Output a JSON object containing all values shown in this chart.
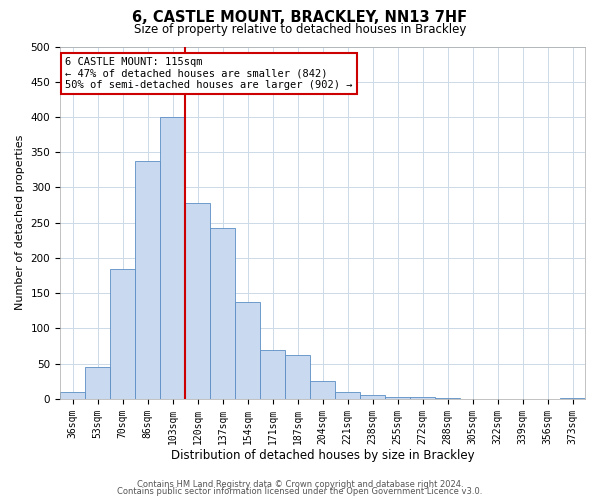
{
  "title": "6, CASTLE MOUNT, BRACKLEY, NN13 7HF",
  "subtitle": "Size of property relative to detached houses in Brackley",
  "xlabel": "Distribution of detached houses by size in Brackley",
  "ylabel": "Number of detached properties",
  "bar_labels": [
    "36sqm",
    "53sqm",
    "70sqm",
    "86sqm",
    "103sqm",
    "120sqm",
    "137sqm",
    "154sqm",
    "171sqm",
    "187sqm",
    "204sqm",
    "221sqm",
    "238sqm",
    "255sqm",
    "272sqm",
    "288sqm",
    "305sqm",
    "322sqm",
    "339sqm",
    "356sqm",
    "373sqm"
  ],
  "bar_heights": [
    10,
    46,
    185,
    338,
    400,
    278,
    242,
    137,
    70,
    63,
    26,
    10,
    5,
    3,
    3,
    2,
    0,
    0,
    0,
    0,
    2
  ],
  "bar_color": "#c8d9f0",
  "bar_edge_color": "#5b8ec4",
  "vline_color": "#cc0000",
  "vline_x": 4.5,
  "annotation_title": "6 CASTLE MOUNT: 115sqm",
  "annotation_line1": "← 47% of detached houses are smaller (842)",
  "annotation_line2": "50% of semi-detached houses are larger (902) →",
  "annotation_box_color": "#ffffff",
  "annotation_box_edge": "#cc0000",
  "ylim": [
    0,
    500
  ],
  "yticks": [
    0,
    50,
    100,
    150,
    200,
    250,
    300,
    350,
    400,
    450,
    500
  ],
  "footer_line1": "Contains HM Land Registry data © Crown copyright and database right 2024.",
  "footer_line2": "Contains public sector information licensed under the Open Government Licence v3.0.",
  "background_color": "#ffffff",
  "grid_color": "#ccd9e8",
  "title_fontsize": 10.5,
  "subtitle_fontsize": 8.5,
  "ylabel_fontsize": 8,
  "xlabel_fontsize": 8.5,
  "tick_fontsize": 7,
  "annotation_fontsize": 7.5,
  "footer_fontsize": 6
}
